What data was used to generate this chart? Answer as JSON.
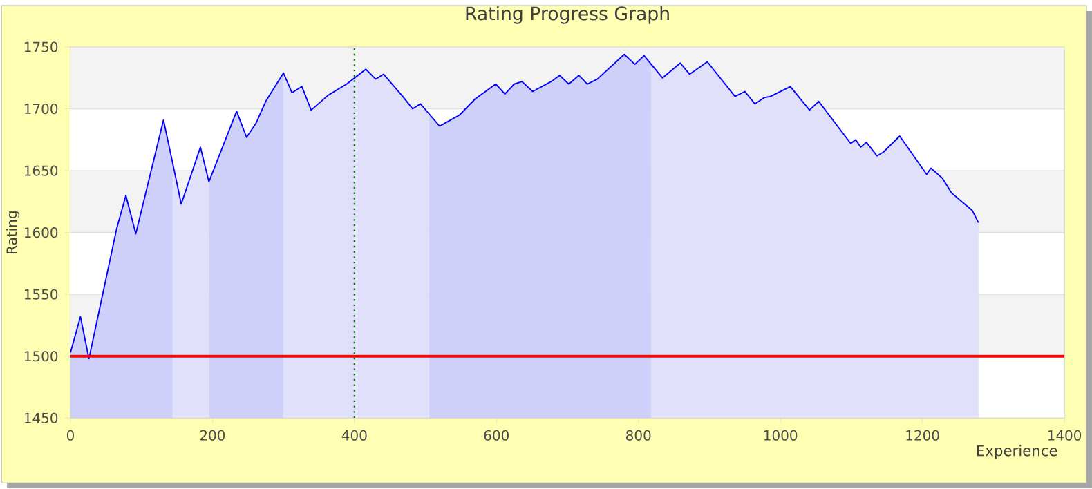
{
  "chart_data": {
    "type": "area",
    "title": "Rating Progress Graph",
    "xlabel": "Experience",
    "ylabel": "Rating",
    "x": [
      0,
      14,
      26,
      65,
      78,
      92,
      131,
      144,
      156,
      183,
      195,
      234,
      248,
      261,
      275,
      300,
      312,
      326,
      339,
      363,
      389,
      416,
      430,
      441,
      468,
      482,
      493,
      505,
      520,
      548,
      570,
      599,
      612,
      625,
      636,
      651,
      677,
      689,
      702,
      716,
      728,
      742,
      780,
      795,
      808,
      818,
      834,
      859,
      872,
      897,
      936,
      950,
      964,
      977,
      986,
      1014,
      1041,
      1054,
      1099,
      1106,
      1113,
      1121,
      1136,
      1145,
      1168,
      1206,
      1212,
      1228,
      1241,
      1270,
      1279
    ],
    "series": [
      {
        "color": "#cfd0fa",
        "x": [
          0,
          14,
          26,
          65,
          78,
          92,
          131,
          144
        ],
        "values": [
          1503,
          1532,
          1498,
          1603,
          1630,
          1599,
          1691,
          1656
        ]
      },
      {
        "color": "#e0e0fa",
        "x": [
          144,
          156,
          183,
          195
        ],
        "values": [
          1656,
          1623,
          1669,
          1641
        ]
      },
      {
        "color": "#cfd0fa",
        "x": [
          195,
          234,
          248,
          261,
          275,
          300
        ],
        "values": [
          1641,
          1698,
          1677,
          1688,
          1706,
          1729
        ]
      },
      {
        "color": "#e0e0fa",
        "x": [
          300,
          312,
          326,
          339,
          363,
          389,
          416,
          430,
          441,
          468,
          482,
          493,
          505
        ],
        "values": [
          1729,
          1713,
          1718,
          1699,
          1711,
          1720,
          1732,
          1724,
          1728,
          1710,
          1700,
          1704,
          1696
        ]
      },
      {
        "color": "#cfd0fa",
        "x": [
          505,
          520,
          548,
          570,
          599,
          612,
          625,
          636,
          651,
          677,
          689,
          702,
          716,
          728,
          742,
          780,
          795,
          808,
          818
        ],
        "values": [
          1696,
          1686,
          1695,
          1708,
          1720,
          1712,
          1720,
          1722,
          1714,
          1722,
          1727,
          1720,
          1727,
          1720,
          1724,
          1744,
          1736,
          1743,
          1736
        ]
      },
      {
        "color": "#e0e0fa",
        "x": [
          818,
          834,
          859,
          872,
          897,
          936,
          950,
          964,
          977,
          986,
          1014,
          1041,
          1054,
          1099,
          1106,
          1113,
          1121,
          1136,
          1145,
          1168,
          1206,
          1212,
          1228,
          1241,
          1270,
          1279
        ],
        "values": [
          1736,
          1725,
          1737,
          1728,
          1738,
          1710,
          1714,
          1704,
          1709,
          1710,
          1718,
          1699,
          1706,
          1672,
          1675,
          1669,
          1673,
          1662,
          1665,
          1678,
          1647,
          1652,
          1644,
          1632,
          1618,
          1608
        ]
      },
      {
        "type": "line",
        "color": "#0000ff",
        "values": [
          1503,
          1532,
          1498,
          1603,
          1630,
          1599,
          1691,
          1656,
          1623,
          1669,
          1641,
          1698,
          1677,
          1688,
          1706,
          1729,
          1713,
          1718,
          1699,
          1711,
          1720,
          1732,
          1724,
          1728,
          1710,
          1700,
          1704,
          1696,
          1686,
          1695,
          1708,
          1720,
          1712,
          1720,
          1722,
          1714,
          1722,
          1727,
          1720,
          1727,
          1720,
          1724,
          1744,
          1736,
          1743,
          1736,
          1725,
          1737,
          1728,
          1738,
          1710,
          1714,
          1704,
          1709,
          1710,
          1718,
          1699,
          1706,
          1672,
          1675,
          1669,
          1673,
          1662,
          1665,
          1678,
          1647,
          1652,
          1644,
          1632,
          1618,
          1608
        ]
      }
    ],
    "xlim": [
      0,
      1400
    ],
    "ylim": [
      1450,
      1750
    ],
    "xticks": [
      0,
      200,
      400,
      600,
      800,
      1000,
      1200,
      1400
    ],
    "yticks": [
      1450,
      1500,
      1550,
      1600,
      1650,
      1700,
      1750
    ],
    "grid": "y",
    "ref_lines": [
      {
        "axis": "y",
        "value": 1500,
        "color": "#ff0000",
        "line_style": "solid"
      },
      {
        "axis": "x",
        "value": 400,
        "color": "#008000",
        "line_style": "dotted"
      }
    ],
    "bands": [
      {
        "axis": "y",
        "from": 1500,
        "to": 1550,
        "color": "#f3f3f3"
      },
      {
        "axis": "y",
        "from": 1600,
        "to": 1650,
        "color": "#f3f3f3"
      },
      {
        "axis": "y",
        "from": 1700,
        "to": 1750,
        "color": "#f3f3f3"
      }
    ]
  }
}
